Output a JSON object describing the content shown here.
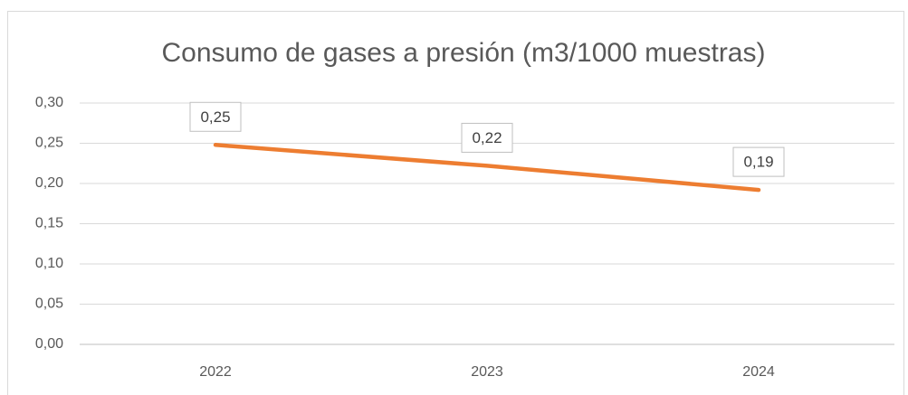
{
  "chart_data": {
    "type": "line",
    "title": "Consumo de gases a presión (m3/1000 muestras)",
    "categories": [
      "2022",
      "2023",
      "2024"
    ],
    "values": [
      0.248,
      0.222,
      0.192
    ],
    "value_labels": [
      "0,25",
      "0,22",
      "0,19"
    ],
    "color": "#ed7d31",
    "ylim": [
      0,
      0.3
    ],
    "yticks": [
      {
        "value": 0,
        "label": "0,00"
      },
      {
        "value": 0.05,
        "label": "0,05"
      },
      {
        "value": 0.1,
        "label": "0,10"
      },
      {
        "value": 0.15,
        "label": "0,15"
      },
      {
        "value": 0.2,
        "label": "0,20"
      },
      {
        "value": 0.25,
        "label": "0,25"
      },
      {
        "value": 0.3,
        "label": "0,30"
      }
    ],
    "grid": true
  }
}
